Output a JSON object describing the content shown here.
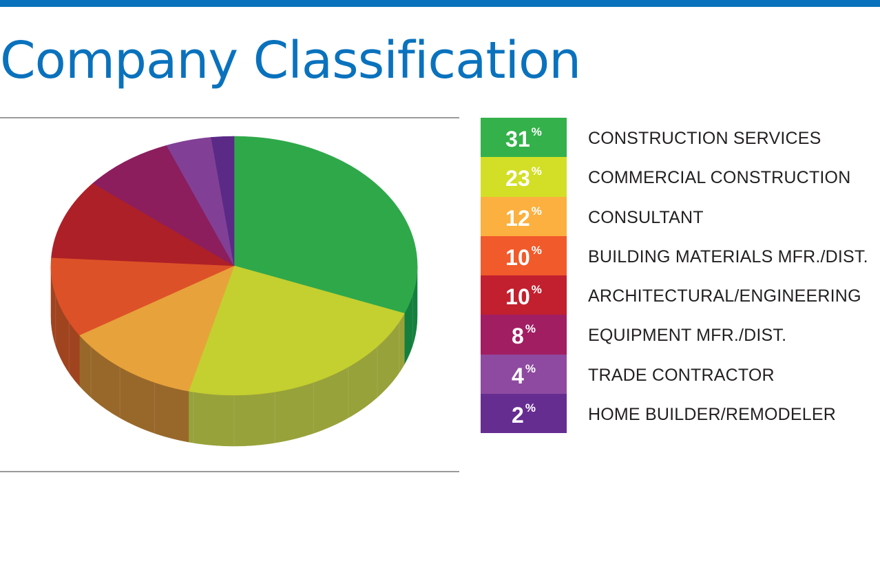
{
  "header": {
    "title": "Company Classification",
    "accent_color": "#0a72bd"
  },
  "chart_data": {
    "type": "pie",
    "style": "3d",
    "title": "",
    "slices": [
      {
        "label": "CONSTRUCTION SERVICES",
        "value": 31,
        "pct_text": "31",
        "color": "#34b14a"
      },
      {
        "label": "COMMERCIAL CONSTRUCTION",
        "value": 23,
        "pct_text": "23",
        "color": "#d3df26"
      },
      {
        "label": "CONSULTANT",
        "value": 12,
        "pct_text": "12",
        "color": "#fbb040"
      },
      {
        "label": "BUILDING MATERIALS MFR./DIST.",
        "value": 10,
        "pct_text": "10",
        "color": "#f15a2b"
      },
      {
        "label": "ARCHITECTURAL/ENGINEERING",
        "value": 10,
        "pct_text": "10",
        "color": "#c2202f"
      },
      {
        "label": "EQUIPMENT MFR./DIST.",
        "value": 8,
        "pct_text": "8",
        "color": "#a21e63"
      },
      {
        "label": "TRADE CONTRACTOR",
        "value": 4,
        "pct_text": "4",
        "color": "#8e4aa0"
      },
      {
        "label": "HOME BUILDER/REMODELER",
        "value": 2,
        "pct_text": "2",
        "color": "#662d91"
      }
    ],
    "pie_rendered_colors": {
      "top": [
        "#2fa84a",
        "#c4cf30",
        "#e7a23b",
        "#dd5128",
        "#ae2027",
        "#8c1e5e",
        "#814096",
        "#5a2a86"
      ],
      "side": [
        "#157f3e",
        "#98a23a",
        "#98682a",
        "#a04420",
        "#801a20",
        "#681848",
        "#5e2e70",
        "#432064"
      ]
    },
    "percent_symbol": "%",
    "legend_position": "right"
  }
}
